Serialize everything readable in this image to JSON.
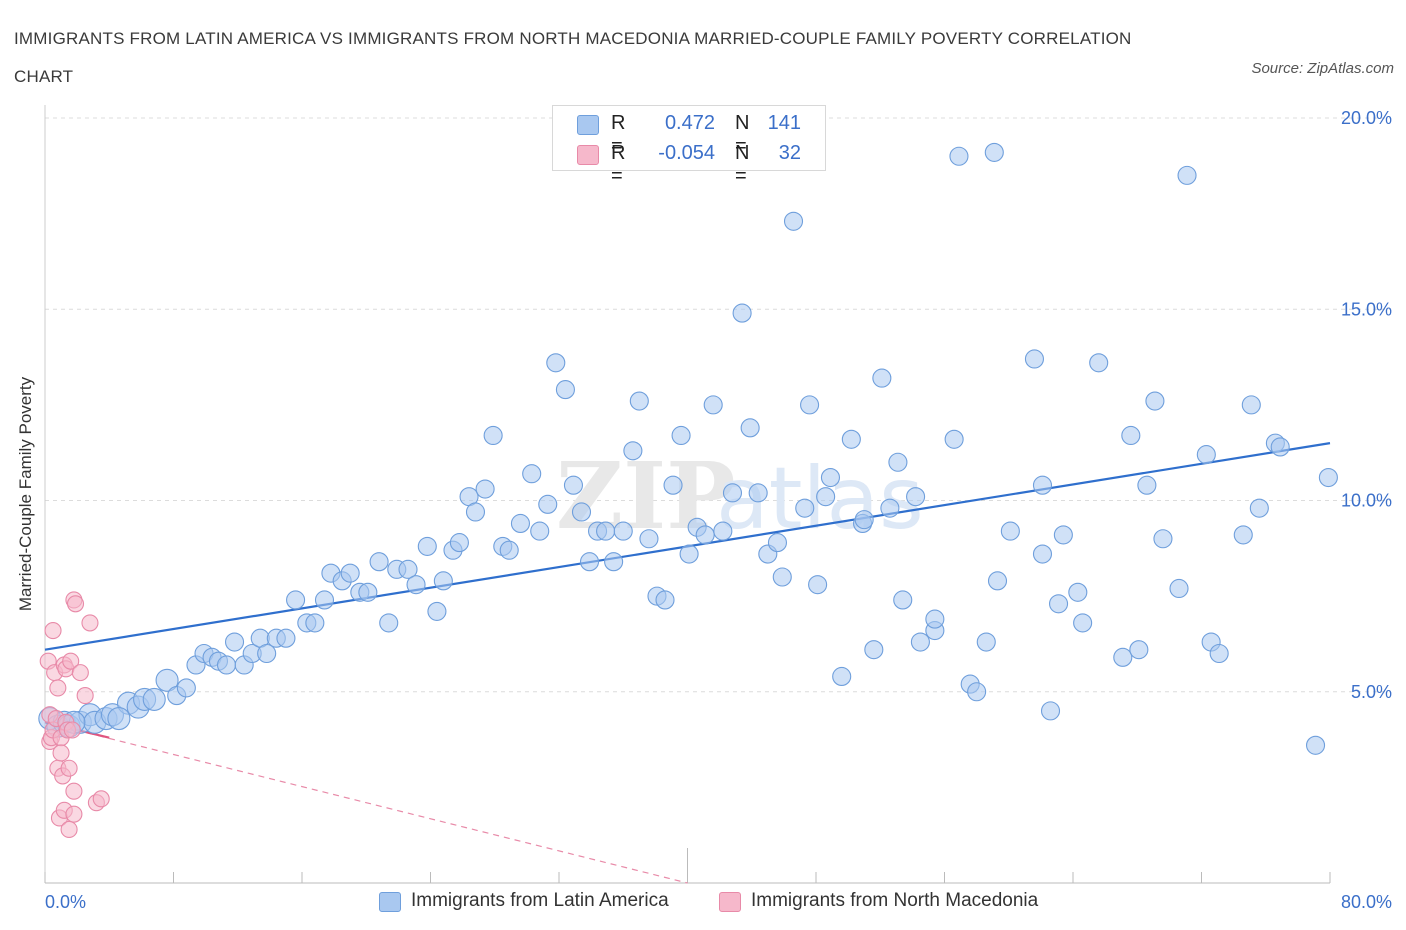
{
  "header": {
    "title": "IMMIGRANTS FROM LATIN AMERICA VS IMMIGRANTS FROM NORTH MACEDONIA MARRIED-COUPLE FAMILY POVERTY CORRELATION CHART",
    "source": "Source: ZipAtlas.com"
  },
  "watermark": {
    "zip": "ZIP",
    "atlas": "atlas"
  },
  "legend": {
    "rows": [
      {
        "r_label": "R =",
        "r_value": "0.472",
        "n_label": "N =",
        "n_value": "141",
        "color": "#a9c8f0"
      },
      {
        "r_label": "R =",
        "r_value": "-0.054",
        "n_label": "N =",
        "n_value": "32",
        "color": "#f6b8cb"
      }
    ]
  },
  "chart_data": {
    "type": "scatter",
    "xlabel": "",
    "ylabel": "Married-Couple Family Poverty",
    "xlim": [
      0,
      80
    ],
    "ylim": [
      0,
      20
    ],
    "x_tick_labels": [
      "0.0%",
      "80.0%"
    ],
    "y_ticks": [
      5,
      10,
      15,
      20
    ],
    "y_tick_labels": [
      "5.0%",
      "10.0%",
      "15.0%",
      "20.0%"
    ],
    "grid": true,
    "legend_position": "bottom",
    "series": [
      {
        "name": "Immigrants from Latin America",
        "color": "#6f9fdc",
        "fill": "#a9c8f0",
        "trend": {
          "x1": 0,
          "y1": 6.1,
          "x2": 80,
          "y2": 11.5
        },
        "points": [
          [
            0.3,
            4.3
          ],
          [
            0.8,
            4.1
          ],
          [
            1.2,
            4.2
          ],
          [
            1.5,
            4.1
          ],
          [
            2.2,
            4.2
          ],
          [
            2.8,
            4.4
          ],
          [
            3.1,
            4.2
          ],
          [
            3.8,
            4.3
          ],
          [
            4.2,
            4.4
          ],
          [
            5.2,
            4.7
          ],
          [
            5.8,
            4.6
          ],
          [
            6.2,
            4.8
          ],
          [
            6.8,
            4.8
          ],
          [
            7.6,
            5.3
          ],
          [
            8.2,
            4.9
          ],
          [
            8.8,
            5.1
          ],
          [
            9.4,
            5.7
          ],
          [
            9.9,
            6.0
          ],
          [
            10.4,
            5.9
          ],
          [
            10.8,
            5.8
          ],
          [
            11.3,
            5.7
          ],
          [
            11.8,
            6.3
          ],
          [
            12.4,
            5.7
          ],
          [
            12.9,
            6.0
          ],
          [
            13.4,
            6.4
          ],
          [
            13.8,
            6.0
          ],
          [
            14.4,
            6.4
          ],
          [
            15.0,
            6.4
          ],
          [
            15.6,
            7.4
          ],
          [
            16.3,
            6.8
          ],
          [
            16.8,
            6.8
          ],
          [
            17.4,
            7.4
          ],
          [
            17.8,
            8.1
          ],
          [
            18.5,
            7.9
          ],
          [
            19.0,
            8.1
          ],
          [
            19.6,
            7.6
          ],
          [
            20.1,
            7.6
          ],
          [
            20.8,
            8.4
          ],
          [
            21.4,
            6.8
          ],
          [
            21.9,
            8.2
          ],
          [
            22.6,
            8.2
          ],
          [
            23.1,
            7.8
          ],
          [
            23.8,
            8.8
          ],
          [
            24.4,
            7.1
          ],
          [
            24.8,
            7.9
          ],
          [
            25.4,
            8.7
          ],
          [
            25.8,
            8.9
          ],
          [
            26.4,
            10.1
          ],
          [
            26.8,
            9.7
          ],
          [
            27.4,
            10.3
          ],
          [
            27.9,
            11.7
          ],
          [
            28.5,
            8.8
          ],
          [
            28.9,
            8.7
          ],
          [
            29.6,
            9.4
          ],
          [
            30.3,
            10.7
          ],
          [
            30.8,
            9.2
          ],
          [
            31.3,
            9.9
          ],
          [
            31.8,
            13.6
          ],
          [
            32.4,
            12.9
          ],
          [
            32.9,
            10.4
          ],
          [
            33.4,
            9.7
          ],
          [
            33.9,
            8.4
          ],
          [
            34.4,
            9.2
          ],
          [
            34.9,
            9.2
          ],
          [
            35.4,
            8.4
          ],
          [
            36.0,
            9.2
          ],
          [
            36.6,
            11.3
          ],
          [
            37.0,
            12.6
          ],
          [
            37.6,
            9.0
          ],
          [
            38.1,
            7.5
          ],
          [
            38.6,
            7.4
          ],
          [
            39.1,
            10.4
          ],
          [
            39.6,
            11.7
          ],
          [
            40.1,
            8.6
          ],
          [
            40.6,
            9.3
          ],
          [
            41.1,
            9.1
          ],
          [
            41.6,
            12.5
          ],
          [
            42.2,
            9.2
          ],
          [
            42.8,
            10.2
          ],
          [
            43.4,
            14.9
          ],
          [
            43.9,
            11.9
          ],
          [
            44.4,
            10.2
          ],
          [
            45.0,
            8.6
          ],
          [
            45.6,
            8.9
          ],
          [
            45.9,
            8.0
          ],
          [
            46.6,
            17.3
          ],
          [
            47.3,
            9.8
          ],
          [
            47.6,
            12.5
          ],
          [
            48.1,
            7.8
          ],
          [
            48.6,
            10.1
          ],
          [
            48.9,
            10.6
          ],
          [
            49.6,
            5.4
          ],
          [
            50.2,
            11.6
          ],
          [
            50.9,
            9.4
          ],
          [
            51.0,
            9.5
          ],
          [
            51.6,
            6.1
          ],
          [
            52.1,
            13.2
          ],
          [
            52.6,
            9.8
          ],
          [
            53.1,
            11.0
          ],
          [
            53.4,
            7.4
          ],
          [
            54.2,
            10.1
          ],
          [
            54.5,
            6.3
          ],
          [
            55.4,
            6.6
          ],
          [
            55.4,
            6.9
          ],
          [
            56.6,
            11.6
          ],
          [
            56.9,
            19.0
          ],
          [
            57.6,
            5.2
          ],
          [
            58.0,
            5.0
          ],
          [
            58.6,
            6.3
          ],
          [
            59.1,
            19.1
          ],
          [
            59.3,
            7.9
          ],
          [
            60.1,
            9.2
          ],
          [
            61.6,
            13.7
          ],
          [
            62.1,
            10.4
          ],
          [
            62.1,
            8.6
          ],
          [
            62.6,
            4.5
          ],
          [
            63.1,
            7.3
          ],
          [
            63.4,
            9.1
          ],
          [
            64.3,
            7.6
          ],
          [
            64.6,
            6.8
          ],
          [
            65.6,
            13.6
          ],
          [
            67.1,
            5.9
          ],
          [
            67.6,
            11.7
          ],
          [
            68.1,
            6.1
          ],
          [
            68.6,
            10.4
          ],
          [
            69.1,
            12.6
          ],
          [
            69.6,
            9.0
          ],
          [
            70.6,
            7.7
          ],
          [
            71.1,
            18.5
          ],
          [
            72.3,
            11.2
          ],
          [
            72.6,
            6.3
          ],
          [
            73.1,
            6.0
          ],
          [
            74.6,
            9.1
          ],
          [
            75.1,
            12.5
          ],
          [
            75.6,
            9.8
          ],
          [
            76.6,
            11.5
          ],
          [
            76.9,
            11.4
          ],
          [
            79.1,
            3.6
          ],
          [
            79.9,
            10.6
          ],
          [
            1.8,
            4.2
          ],
          [
            4.6,
            4.3
          ]
        ]
      },
      {
        "name": "Immigrants from North Macedonia",
        "color": "#e88aa8",
        "fill": "#f6b8cb",
        "trend": {
          "x1": 0,
          "y1": 4.2,
          "x2": 40,
          "y2": 0.0
        },
        "points": [
          [
            0.2,
            5.8
          ],
          [
            0.3,
            4.4
          ],
          [
            0.3,
            3.7
          ],
          [
            0.4,
            3.8
          ],
          [
            0.5,
            6.6
          ],
          [
            0.5,
            4.0
          ],
          [
            0.6,
            5.5
          ],
          [
            0.7,
            4.3
          ],
          [
            0.8,
            5.1
          ],
          [
            0.8,
            3.0
          ],
          [
            0.9,
            1.7
          ],
          [
            1.0,
            3.8
          ],
          [
            1.0,
            3.4
          ],
          [
            1.1,
            2.8
          ],
          [
            1.2,
            1.9
          ],
          [
            1.2,
            5.7
          ],
          [
            1.3,
            5.6
          ],
          [
            1.3,
            4.2
          ],
          [
            1.4,
            4.0
          ],
          [
            1.5,
            3.0
          ],
          [
            1.5,
            1.4
          ],
          [
            1.6,
            5.8
          ],
          [
            1.7,
            4.0
          ],
          [
            1.8,
            2.4
          ],
          [
            1.8,
            1.8
          ],
          [
            1.8,
            7.4
          ],
          [
            1.9,
            7.3
          ],
          [
            2.2,
            5.5
          ],
          [
            2.5,
            4.9
          ],
          [
            2.8,
            6.8
          ],
          [
            3.2,
            2.1
          ],
          [
            3.5,
            2.2
          ]
        ]
      }
    ]
  }
}
